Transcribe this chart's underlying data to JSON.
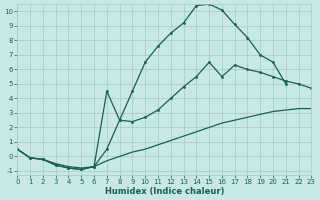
{
  "xlabel": "Humidex (Indice chaleur)",
  "xlim": [
    0,
    23
  ],
  "ylim": [
    -1.3,
    10.5
  ],
  "yticks": [
    -1,
    0,
    1,
    2,
    3,
    4,
    5,
    6,
    7,
    8,
    9,
    10
  ],
  "xticks": [
    0,
    1,
    2,
    3,
    4,
    5,
    6,
    7,
    8,
    9,
    10,
    11,
    12,
    13,
    14,
    15,
    16,
    17,
    18,
    19,
    20,
    21,
    22,
    23
  ],
  "bg_color": "#c8e8e8",
  "grid_color": "#a8c8c8",
  "line_color": "#1a6050",
  "curve1_x": [
    0,
    1,
    2,
    3,
    4,
    5,
    6,
    7,
    8,
    9,
    10,
    11,
    12,
    13,
    14,
    15,
    16,
    17,
    18,
    19,
    20,
    21
  ],
  "curve1_y": [
    0.5,
    -0.1,
    -0.2,
    -0.6,
    -0.8,
    -0.9,
    -0.7,
    0.5,
    2.5,
    4.5,
    6.5,
    7.6,
    8.5,
    9.2,
    10.4,
    10.5,
    10.1,
    9.1,
    8.2,
    7.0,
    6.5,
    5.0
  ],
  "curve2_x": [
    0,
    1,
    2,
    3,
    4,
    5,
    6,
    7,
    8,
    9,
    10,
    11,
    12,
    13,
    14,
    15,
    16,
    17,
    18,
    19,
    20,
    21,
    22,
    23
  ],
  "curve2_y": [
    0.5,
    -0.1,
    -0.2,
    -0.6,
    -0.8,
    -0.9,
    -0.7,
    4.5,
    2.5,
    2.4,
    2.7,
    3.2,
    4.0,
    4.8,
    5.5,
    6.5,
    5.5,
    6.3,
    6.0,
    5.8,
    5.5,
    5.2,
    5.0,
    4.7
  ],
  "curve3_x": [
    0,
    1,
    2,
    3,
    4,
    5,
    6,
    7,
    8,
    9,
    10,
    11,
    12,
    13,
    14,
    15,
    16,
    17,
    18,
    19,
    20,
    21,
    22,
    23
  ],
  "curve3_y": [
    0.5,
    -0.1,
    -0.2,
    -0.5,
    -0.7,
    -0.8,
    -0.7,
    -0.3,
    0.0,
    0.3,
    0.5,
    0.8,
    1.1,
    1.4,
    1.7,
    2.0,
    2.3,
    2.5,
    2.7,
    2.9,
    3.1,
    3.2,
    3.3,
    3.3
  ]
}
